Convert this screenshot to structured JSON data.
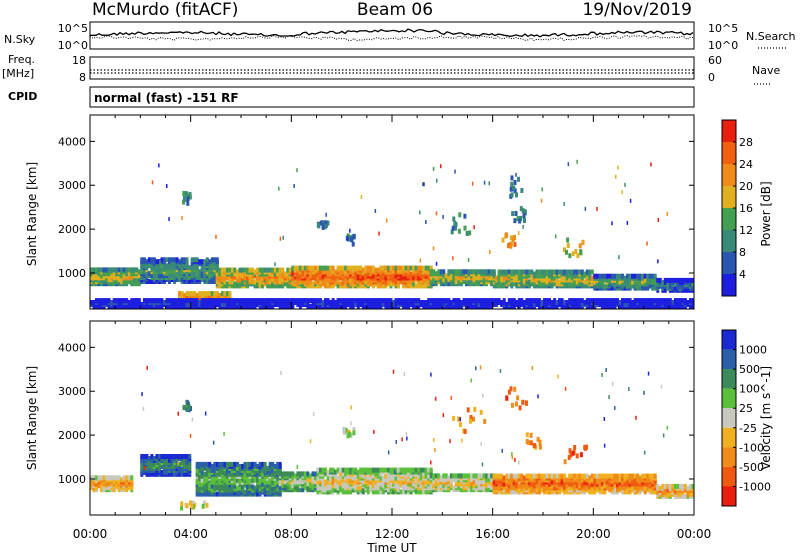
{
  "header": {
    "station": "McMurdo (fitACF)",
    "beam": "Beam 06",
    "date": "19/Nov/2019"
  },
  "left_labels": {
    "nsky": "N.Sky",
    "freq": "Freq.",
    "freq_unit": "[MHz]",
    "cpid": "CPID"
  },
  "right_labels": {
    "nsearch": "N.Search",
    "nave": "Nave"
  },
  "noise_panel": {
    "left_ticks": [
      "10^5",
      "10^0"
    ],
    "right_ticks": [
      "10^5",
      "10^0"
    ]
  },
  "freq_panel": {
    "left_ticks": [
      "18",
      "8"
    ],
    "right_ticks": [
      "60",
      "0"
    ]
  },
  "cpid_text": "normal (fast) -151 RF",
  "xaxis": {
    "label": "Time UT",
    "ticks": [
      "00:00",
      "04:00",
      "08:00",
      "12:00",
      "16:00",
      "20:00",
      "00:00"
    ]
  },
  "chart_data": [
    {
      "type": "heatmap",
      "name": "power",
      "ylabel": "Slant Range [km]",
      "yticks": [
        1000,
        2000,
        3000,
        4000
      ],
      "ylim": [
        180,
        4600
      ],
      "xlim": [
        0,
        24
      ],
      "colorbar": {
        "label": "Power [dB]",
        "ticks": [
          "4",
          "8",
          "12",
          "16",
          "20",
          "24",
          "28"
        ],
        "colors": [
          "#1e1ee0",
          "#2a56b0",
          "#3a8a7a",
          "#44a050",
          "#e0b020",
          "#f08a18",
          "#f06010",
          "#e82010"
        ]
      },
      "bands": [
        {
          "t0": 0.0,
          "t1": 2.0,
          "r0": 700,
          "r1": 1050,
          "level": 4
        },
        {
          "t0": 2.0,
          "t1": 5.0,
          "r0": 750,
          "r1": 1250,
          "level": 3
        },
        {
          "t0": 5.0,
          "t1": 8.0,
          "r0": 650,
          "r1": 1050,
          "level": 5
        },
        {
          "t0": 8.0,
          "t1": 13.5,
          "r0": 650,
          "r1": 1100,
          "level": 6
        },
        {
          "t0": 13.5,
          "t1": 16.0,
          "r0": 700,
          "r1": 1000,
          "level": 4
        },
        {
          "t0": 16.0,
          "t1": 20.0,
          "r0": 650,
          "r1": 1000,
          "level": 4
        },
        {
          "t0": 20.0,
          "t1": 22.5,
          "r0": 600,
          "r1": 900,
          "level": 3
        },
        {
          "t0": 22.5,
          "t1": 24.0,
          "r0": 550,
          "r1": 800,
          "level": 2
        },
        {
          "t0": 3.5,
          "t1": 5.5,
          "r0": 250,
          "r1": 500,
          "level": 6
        },
        {
          "t0": 0.0,
          "t1": 24.0,
          "r0": 180,
          "r1": 320,
          "level": 1
        }
      ],
      "patches": [
        {
          "t": 14.8,
          "r": 2050,
          "w": 1.0,
          "h": 450,
          "level": 2
        },
        {
          "t": 16.7,
          "r": 1650,
          "w": 0.7,
          "h": 400,
          "level": 5
        },
        {
          "t": 16.9,
          "r": 2900,
          "w": 0.5,
          "h": 500,
          "level": 2
        },
        {
          "t": 19.2,
          "r": 1500,
          "w": 1.0,
          "h": 400,
          "level": 4
        },
        {
          "t": 17.0,
          "r": 2300,
          "w": 0.6,
          "h": 350,
          "level": 2
        },
        {
          "t": 3.8,
          "r": 2650,
          "w": 0.3,
          "h": 250,
          "level": 2
        },
        {
          "t": 10.3,
          "r": 1700,
          "w": 0.3,
          "h": 200,
          "level": 2
        },
        {
          "t": 9.2,
          "r": 2050,
          "w": 0.4,
          "h": 150,
          "level": 2
        }
      ]
    },
    {
      "type": "heatmap",
      "name": "velocity",
      "ylabel": "Slant Range [km]",
      "yticks": [
        1000,
        2000,
        3000,
        4000
      ],
      "ylim": [
        180,
        4600
      ],
      "xlim": [
        0,
        24
      ],
      "colorbar": {
        "label": "Velocity [m s^-1]",
        "ticks": [
          "1000",
          "500",
          "100",
          "25",
          "-25",
          "-100",
          "-500",
          "-1000"
        ],
        "colors": [
          "#1a2ad0",
          "#2a60a8",
          "#3c8a5a",
          "#5ac03a",
          "#c8c8c0",
          "#f0b020",
          "#f08a18",
          "#f05a10",
          "#e81e10"
        ]
      },
      "bands": [
        {
          "t0": 0.0,
          "t1": 1.7,
          "r0": 700,
          "r1": 1000,
          "level": 6
        },
        {
          "t0": 2.0,
          "t1": 4.0,
          "r0": 1050,
          "r1": 1500,
          "level": 2
        },
        {
          "t0": 4.2,
          "t1": 7.5,
          "r0": 600,
          "r1": 1300,
          "level": 3
        },
        {
          "t0": 7.5,
          "t1": 9.0,
          "r0": 700,
          "r1": 1100,
          "level": 4
        },
        {
          "t0": 9.0,
          "t1": 13.5,
          "r0": 650,
          "r1": 1150,
          "level": 5
        },
        {
          "t0": 13.5,
          "t1": 16.0,
          "r0": 700,
          "r1": 1050,
          "level": 5
        },
        {
          "t0": 16.0,
          "t1": 22.5,
          "r0": 650,
          "r1": 1050,
          "level": 7
        },
        {
          "t0": 22.5,
          "t1": 24.0,
          "r0": 550,
          "r1": 800,
          "level": 6
        }
      ],
      "patches": [
        {
          "t": 4.0,
          "r": 350,
          "w": 1.2,
          "h": 150,
          "level": 4
        },
        {
          "t": 10.2,
          "r": 2000,
          "w": 0.5,
          "h": 150,
          "level": 4
        },
        {
          "t": 19.2,
          "r": 1500,
          "w": 1.0,
          "h": 400,
          "level": 7
        },
        {
          "t": 15.0,
          "r": 2300,
          "w": 1.4,
          "h": 600,
          "level": 6
        },
        {
          "t": 16.9,
          "r": 2700,
          "w": 0.8,
          "h": 600,
          "level": 7
        },
        {
          "t": 3.8,
          "r": 2600,
          "w": 0.3,
          "h": 200,
          "level": 2
        },
        {
          "t": 17.6,
          "r": 1800,
          "w": 0.6,
          "h": 300,
          "level": 6
        }
      ]
    }
  ]
}
